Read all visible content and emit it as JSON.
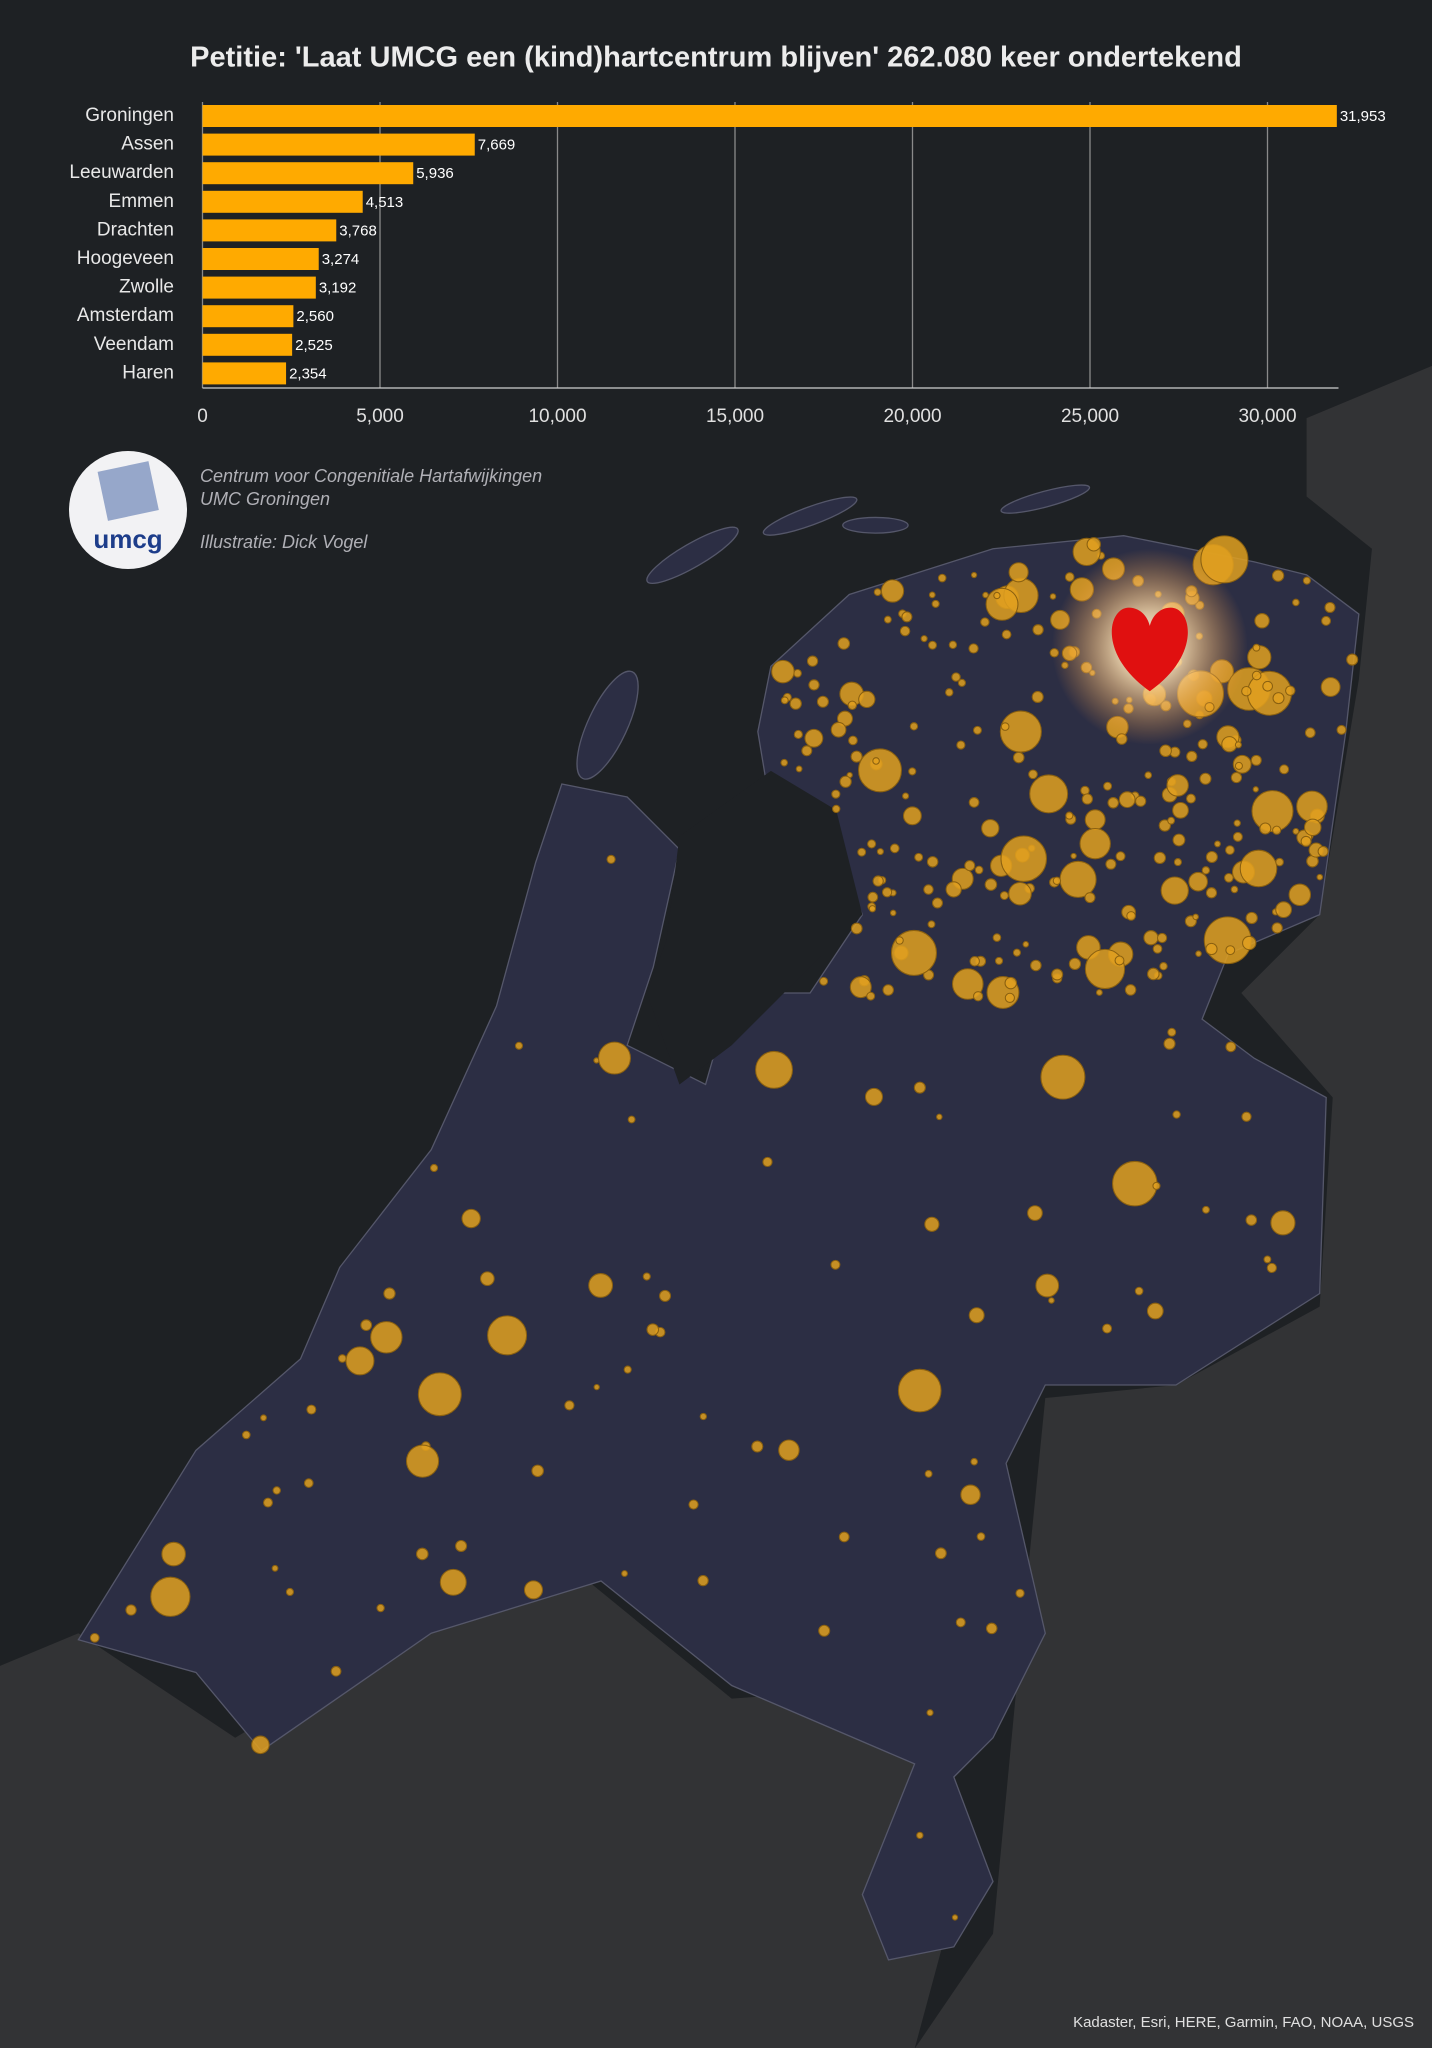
{
  "chart_data": {
    "type": "bar",
    "orientation": "horizontal",
    "title": "Petitie: 'Laat UMCG een (kind)hartcentrum blijven' 262.080 keer ondertekend",
    "categories": [
      "Groningen",
      "Assen",
      "Leeuwarden",
      "Emmen",
      "Drachten",
      "Hoogeveen",
      "Zwolle",
      "Amsterdam",
      "Veendam",
      "Haren"
    ],
    "values": [
      31953,
      7669,
      5936,
      4513,
      3768,
      3274,
      3192,
      2560,
      2525,
      2354
    ],
    "value_labels": [
      "31,953",
      "7,669",
      "5,936",
      "4,513",
      "3,768",
      "3,274",
      "3,192",
      "2,560",
      "2,525",
      "2,354"
    ],
    "color": "#ffaa00",
    "xlim": [
      0,
      32000
    ],
    "xticks": [
      0,
      {
        "value": 5000,
        "label": "5,000"
      },
      {
        "value": 10000,
        "label": "10,000"
      },
      {
        "value": 15000,
        "label": "15,000"
      },
      {
        "value": 20000,
        "label": "20,000"
      },
      {
        "value": 25000,
        "label": "25,000"
      },
      {
        "value": 30000,
        "label": "30,000"
      }
    ],
    "grid": true
  },
  "logo": {
    "text": "umcg"
  },
  "credits": [
    "Centrum voor Congenitiale Hartafwijkingen",
    "UMC Groningen",
    "Illustratie: Dick Vogel"
  ],
  "attribution": "Kadaster, Esri, HERE, Garmin, FAO, NOAA, USGS"
}
